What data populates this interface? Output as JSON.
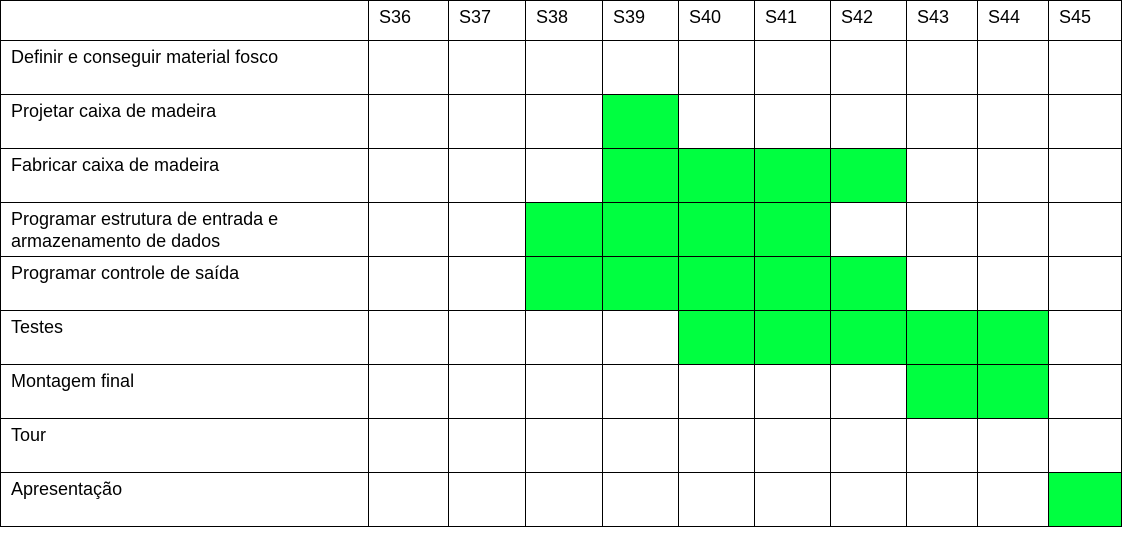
{
  "weeks": [
    "S36",
    "S37",
    "S38",
    "S39",
    "S40",
    "S41",
    "S42",
    "S43",
    "S44",
    "S45"
  ],
  "fill_color": "#00ff40",
  "tasks": [
    {
      "name": "Definir e conseguir material fosco",
      "active": []
    },
    {
      "name": "Projetar caixa de madeira",
      "active": [
        "S39"
      ]
    },
    {
      "name": "Fabricar caixa de madeira",
      "active": [
        "S39",
        "S40",
        "S41",
        "S42"
      ]
    },
    {
      "name": "Programar estrutura de entrada e armazenamento de dados",
      "active": [
        "S38",
        "S39",
        "S40",
        "S41"
      ]
    },
    {
      "name": "Programar controle de saída",
      "active": [
        "S38",
        "S39",
        "S40",
        "S41",
        "S42"
      ]
    },
    {
      "name": "Testes",
      "active": [
        "S40",
        "S41",
        "S42",
        "S43",
        "S44"
      ]
    },
    {
      "name": "Montagem final",
      "active": [
        "S43",
        "S44"
      ]
    },
    {
      "name": "Tour",
      "active": []
    },
    {
      "name": "Apresentação",
      "active": [
        "S45"
      ]
    }
  ]
}
